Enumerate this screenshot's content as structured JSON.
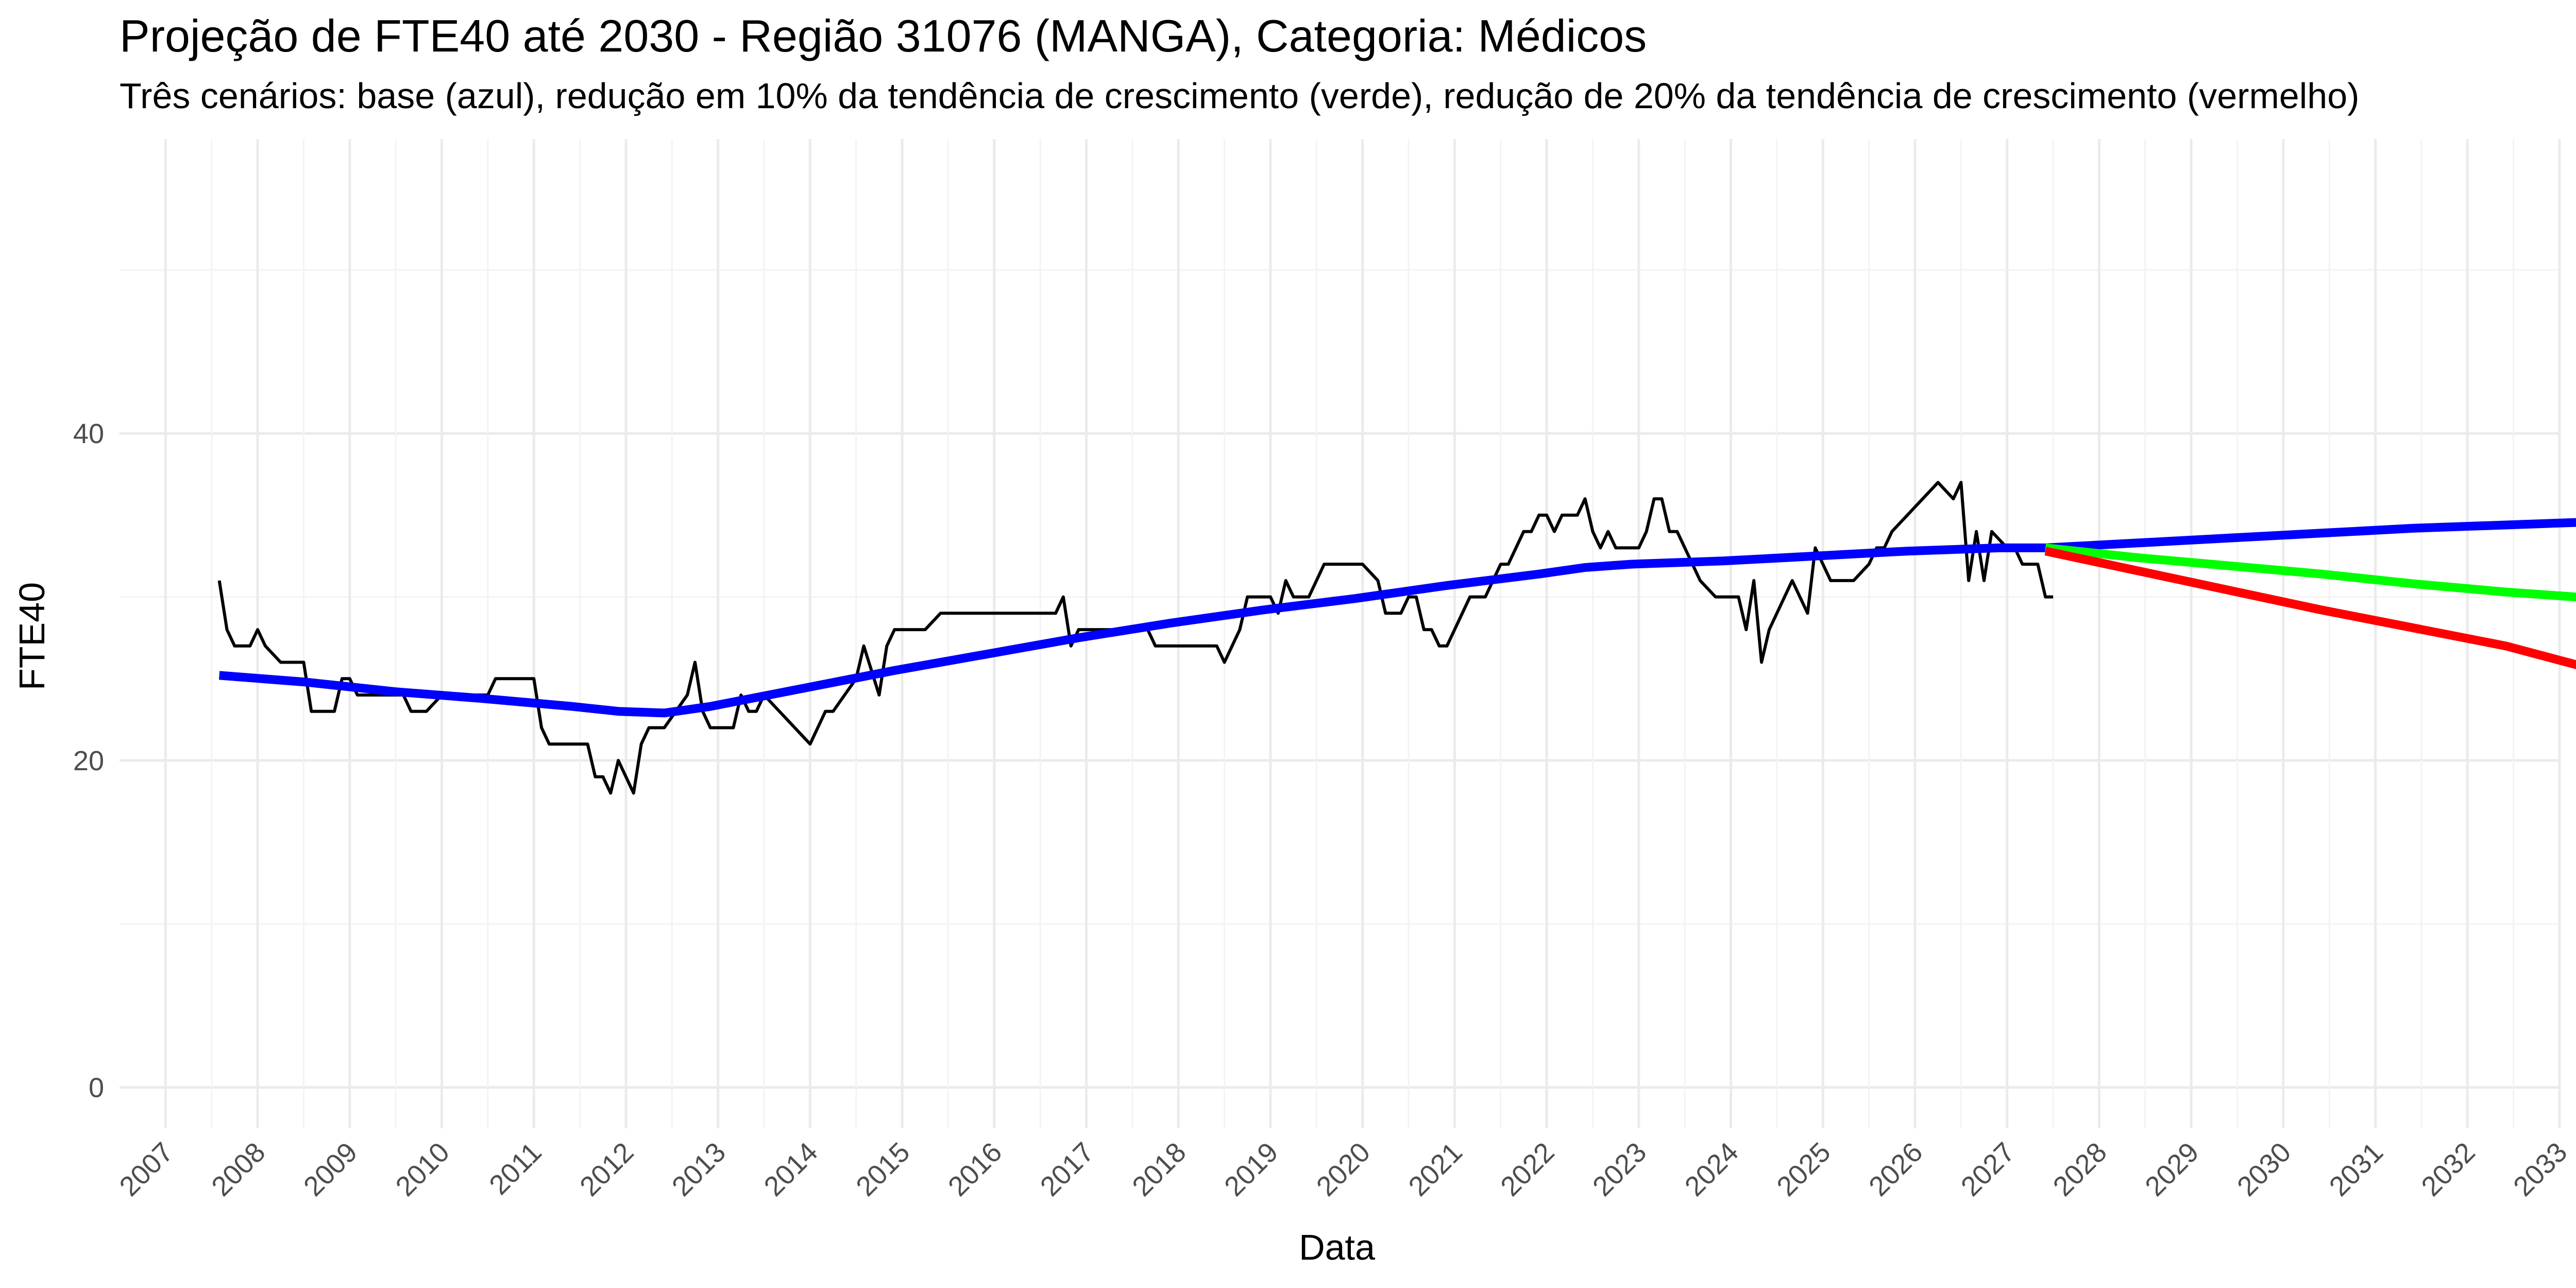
{
  "chart_data": {
    "type": "line",
    "title": "Projeção de FTE40 até 2030 - Região 31076 (MANGA), Categoria: Médicos",
    "subtitle": "Três cenários: base (azul), redução em 10% da tendência de crescimento (verde), redução de 20% da tendência de crescimento (vermelho)",
    "xlabel": "Data",
    "ylabel": "FTE40",
    "x_type": "date",
    "xlim": [
      "2006-07-01",
      "2033-01-01"
    ],
    "ylim": [
      -2.5,
      58
    ],
    "grid": true,
    "legend": "none",
    "x_ticks": [
      "2007",
      "2008",
      "2009",
      "2010",
      "2011",
      "2012",
      "2013",
      "2014",
      "2015",
      "2016",
      "2017",
      "2018",
      "2019",
      "2020",
      "2021",
      "2022",
      "2023",
      "2024",
      "2025",
      "2026",
      "2027",
      "2028",
      "2029",
      "2030",
      "2031",
      "2032",
      "2033"
    ],
    "y_ticks": [
      0,
      20,
      40
    ],
    "series": [
      {
        "color": "#000000",
        "width": "thin",
        "points": [
          [
            "2007-08",
            31
          ],
          [
            "2007-09",
            28
          ],
          [
            "2007-10",
            27
          ],
          [
            "2007-12",
            27
          ],
          [
            "2008-01",
            28
          ],
          [
            "2008-02",
            27
          ],
          [
            "2008-04",
            26
          ],
          [
            "2008-07",
            26
          ],
          [
            "2008-08",
            23
          ],
          [
            "2008-11",
            23
          ],
          [
            "2008-12",
            25
          ],
          [
            "2009-01",
            25
          ],
          [
            "2009-02",
            24
          ],
          [
            "2009-08",
            24
          ],
          [
            "2009-09",
            23
          ],
          [
            "2009-11",
            23
          ],
          [
            "2010-01",
            24
          ],
          [
            "2010-07",
            24
          ],
          [
            "2010-08",
            25
          ],
          [
            "2011-01",
            25
          ],
          [
            "2011-02",
            22
          ],
          [
            "2011-03",
            21
          ],
          [
            "2011-08",
            21
          ],
          [
            "2011-09",
            19
          ],
          [
            "2011-10",
            19
          ],
          [
            "2011-11",
            18
          ],
          [
            "2011-12",
            20
          ],
          [
            "2012-01",
            19
          ],
          [
            "2012-02",
            18
          ],
          [
            "2012-03",
            21
          ],
          [
            "2012-04",
            22
          ],
          [
            "2012-06",
            22
          ],
          [
            "2012-09",
            24
          ],
          [
            "2012-10",
            26
          ],
          [
            "2012-11",
            23
          ],
          [
            "2012-12",
            22
          ],
          [
            "2013-03",
            22
          ],
          [
            "2013-04",
            24
          ],
          [
            "2013-05",
            23
          ],
          [
            "2013-06",
            23
          ],
          [
            "2013-07",
            24
          ],
          [
            "2014-01",
            21
          ],
          [
            "2014-03",
            23
          ],
          [
            "2014-04",
            23
          ],
          [
            "2014-07",
            25
          ],
          [
            "2014-08",
            27
          ],
          [
            "2014-10",
            24
          ],
          [
            "2014-11",
            27
          ],
          [
            "2014-12",
            28
          ],
          [
            "2015-04",
            28
          ],
          [
            "2015-06",
            29
          ],
          [
            "2016-09",
            29
          ],
          [
            "2016-10",
            30
          ],
          [
            "2016-11",
            27
          ],
          [
            "2016-12",
            28
          ],
          [
            "2017-09",
            28
          ],
          [
            "2017-10",
            27
          ],
          [
            "2018-06",
            27
          ],
          [
            "2018-07",
            26
          ],
          [
            "2018-09",
            28
          ],
          [
            "2018-10",
            30
          ],
          [
            "2019-01",
            30
          ],
          [
            "2019-02",
            29
          ],
          [
            "2019-03",
            31
          ],
          [
            "2019-04",
            30
          ],
          [
            "2019-06",
            30
          ],
          [
            "2019-08",
            32
          ],
          [
            "2020-01",
            32
          ],
          [
            "2020-03",
            31
          ],
          [
            "2020-04",
            29
          ],
          [
            "2020-06",
            29
          ],
          [
            "2020-07",
            30
          ],
          [
            "2020-08",
            30
          ],
          [
            "2020-09",
            28
          ],
          [
            "2020-10",
            28
          ],
          [
            "2020-11",
            27
          ],
          [
            "2020-12",
            27
          ],
          [
            "2021-02",
            29
          ],
          [
            "2021-03",
            30
          ],
          [
            "2021-05",
            30
          ],
          [
            "2021-07",
            32
          ],
          [
            "2021-08",
            32
          ],
          [
            "2021-10",
            34
          ],
          [
            "2021-11",
            34
          ],
          [
            "2021-12",
            35
          ],
          [
            "2022-01",
            35
          ],
          [
            "2022-02",
            34
          ],
          [
            "2022-03",
            35
          ],
          [
            "2022-05",
            35
          ],
          [
            "2022-06",
            36
          ],
          [
            "2022-07",
            34
          ],
          [
            "2022-08",
            33
          ],
          [
            "2022-09",
            34
          ],
          [
            "2022-10",
            33
          ],
          [
            "2023-01",
            33
          ],
          [
            "2023-02",
            34
          ],
          [
            "2023-03",
            36
          ],
          [
            "2023-04",
            36
          ],
          [
            "2023-05",
            34
          ],
          [
            "2023-06",
            34
          ],
          [
            "2023-07",
            33
          ],
          [
            "2023-09",
            31
          ],
          [
            "2023-11",
            30
          ],
          [
            "2024-02",
            30
          ],
          [
            "2024-03",
            28
          ],
          [
            "2024-04",
            31
          ],
          [
            "2024-05",
            26
          ],
          [
            "2024-06",
            28
          ],
          [
            "2024-08",
            30
          ],
          [
            "2024-09",
            31
          ],
          [
            "2024-11",
            29
          ],
          [
            "2024-12",
            33
          ],
          [
            "2025-02",
            31
          ],
          [
            "2025-05",
            31
          ],
          [
            "2025-07",
            32
          ],
          [
            "2025-08",
            33
          ],
          [
            "2025-09",
            33
          ],
          [
            "2025-10",
            34
          ],
          [
            "2026-02",
            36
          ],
          [
            "2026-04",
            37
          ],
          [
            "2026-06",
            36
          ],
          [
            "2026-07",
            37
          ],
          [
            "2026-08",
            31
          ],
          [
            "2026-09",
            34
          ],
          [
            "2026-10",
            31
          ],
          [
            "2026-11",
            34
          ],
          [
            "2027-01",
            33
          ],
          [
            "2027-02",
            33
          ],
          [
            "2027-03",
            32
          ],
          [
            "2027-05",
            32
          ],
          [
            "2027-06",
            30
          ],
          [
            "2027-07",
            30
          ]
        ]
      },
      {
        "color": "#0000ff",
        "width": "thick",
        "points": [
          [
            "2007-08",
            25.2
          ],
          [
            "2008-07",
            24.8
          ],
          [
            "2009-07",
            24.2
          ],
          [
            "2010-06",
            23.8
          ],
          [
            "2011-06",
            23.3
          ],
          [
            "2011-12",
            23.0
          ],
          [
            "2012-06",
            22.9
          ],
          [
            "2012-12",
            23.3
          ],
          [
            "2013-12",
            24.4
          ],
          [
            "2014-12",
            25.5
          ],
          [
            "2015-12",
            26.5
          ],
          [
            "2016-12",
            27.5
          ],
          [
            "2017-12",
            28.4
          ],
          [
            "2018-12",
            29.2
          ],
          [
            "2019-12",
            29.9
          ],
          [
            "2020-12",
            30.7
          ],
          [
            "2021-12",
            31.4
          ],
          [
            "2022-06",
            31.8
          ],
          [
            "2022-12",
            32.0
          ],
          [
            "2023-12",
            32.2
          ],
          [
            "2024-12",
            32.5
          ],
          [
            "2025-12",
            32.8
          ],
          [
            "2026-12",
            33.0
          ],
          [
            "2027-06",
            33.0
          ],
          [
            "2028-06",
            33.3
          ],
          [
            "2029-06",
            33.6
          ],
          [
            "2030-06",
            33.9
          ],
          [
            "2031-06",
            34.2
          ],
          [
            "2032-06",
            34.4
          ],
          [
            "2033-06",
            34.6
          ]
        ]
      },
      {
        "color": "#00ff00",
        "width": "thick",
        "points": [
          [
            "2027-06",
            33.0
          ],
          [
            "2028-06",
            32.4
          ],
          [
            "2029-06",
            31.9
          ],
          [
            "2030-06",
            31.4
          ],
          [
            "2031-06",
            30.8
          ],
          [
            "2032-06",
            30.3
          ],
          [
            "2033-06",
            29.9
          ]
        ]
      },
      {
        "color": "#ff0000",
        "width": "thick",
        "points": [
          [
            "2027-06",
            32.8
          ],
          [
            "2028-06",
            31.6
          ],
          [
            "2029-06",
            30.4
          ],
          [
            "2030-06",
            29.2
          ],
          [
            "2031-06",
            28.1
          ],
          [
            "2032-06",
            27.0
          ],
          [
            "2033-06",
            25.5
          ]
        ]
      }
    ]
  }
}
